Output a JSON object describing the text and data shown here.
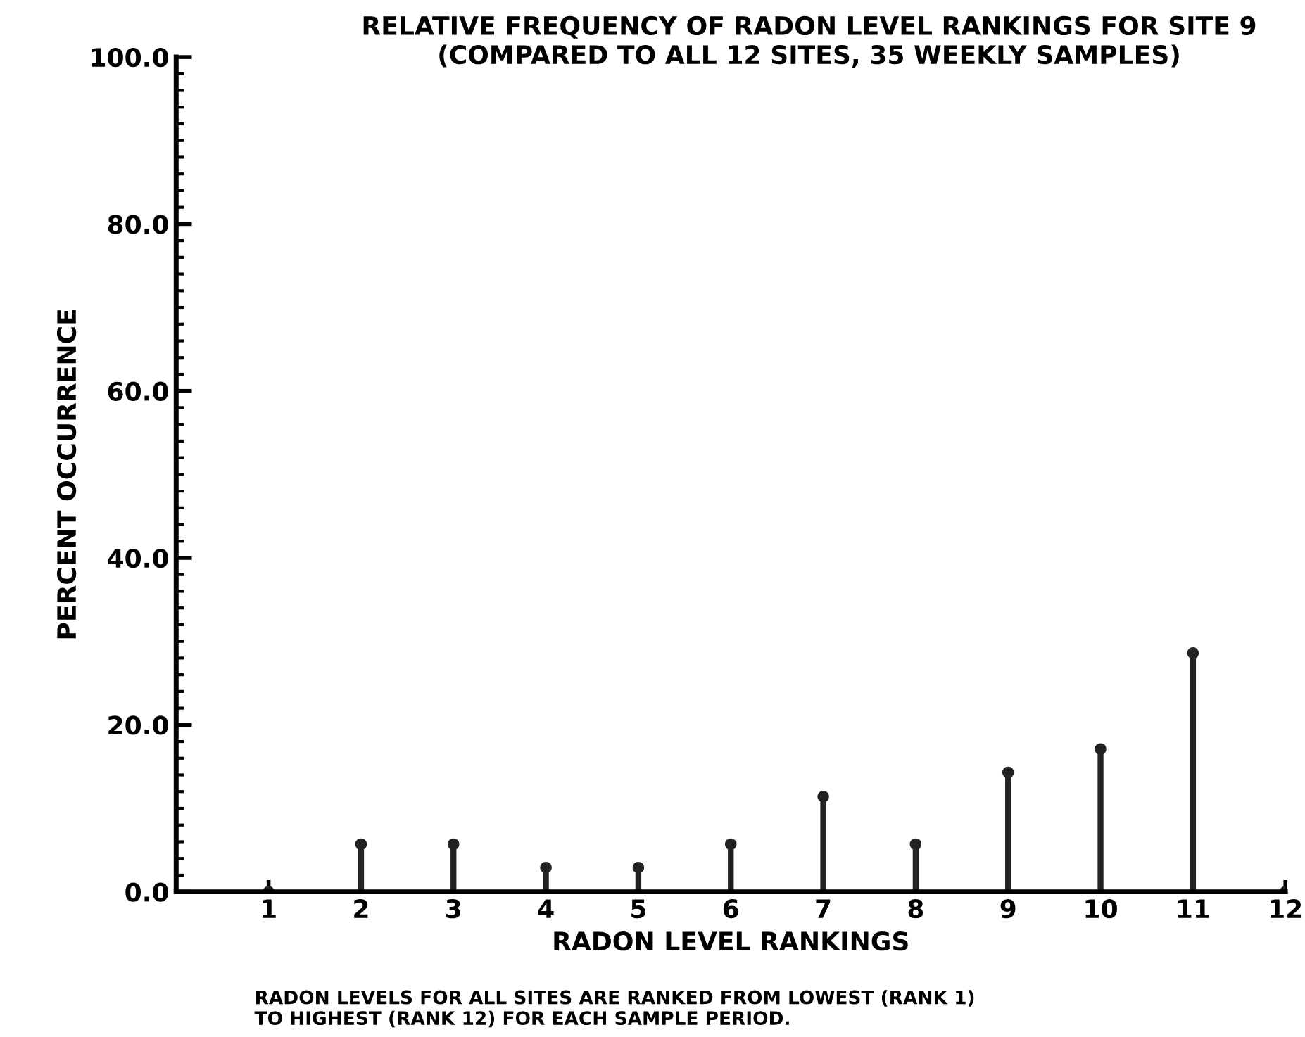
{
  "chart_data": {
    "type": "lollipop",
    "title": "RELATIVE FREQUENCY OF RADON LEVEL RANKINGS FOR SITE 9",
    "subtitle": "(COMPARED TO ALL 12 SITES, 35 WEEKLY SAMPLES)",
    "xlabel": "RADON LEVEL RANKINGS",
    "ylabel": "PERCENT OCCURRENCE",
    "x": [
      1,
      2,
      3,
      4,
      5,
      6,
      7,
      8,
      9,
      10,
      11,
      12
    ],
    "values": [
      0,
      5.7,
      5.7,
      2.9,
      2.9,
      5.7,
      11.4,
      5.7,
      14.3,
      17.1,
      28.6,
      0
    ],
    "color": "#222222",
    "xlim": [
      0,
      12
    ],
    "xticks": [
      1,
      2,
      3,
      4,
      5,
      6,
      7,
      8,
      9,
      10,
      11,
      12
    ],
    "ylim": [
      0,
      100
    ],
    "yticks": [
      {
        "value": 0,
        "label": "0.0"
      },
      {
        "value": 20,
        "label": "20.0"
      },
      {
        "value": 40,
        "label": "40.0"
      },
      {
        "value": 60,
        "label": "60.0"
      },
      {
        "value": 80,
        "label": "80.0"
      },
      {
        "value": 100,
        "label": "100.0"
      }
    ],
    "marker": "circle",
    "grid": false,
    "legend": false,
    "annotations": [
      "RADON LEVELS FOR ALL SITES ARE RANKED FROM LOWEST (RANK 1)\nTO HIGHEST (RANK 12) FOR EACH SAMPLE PERIOD."
    ]
  }
}
